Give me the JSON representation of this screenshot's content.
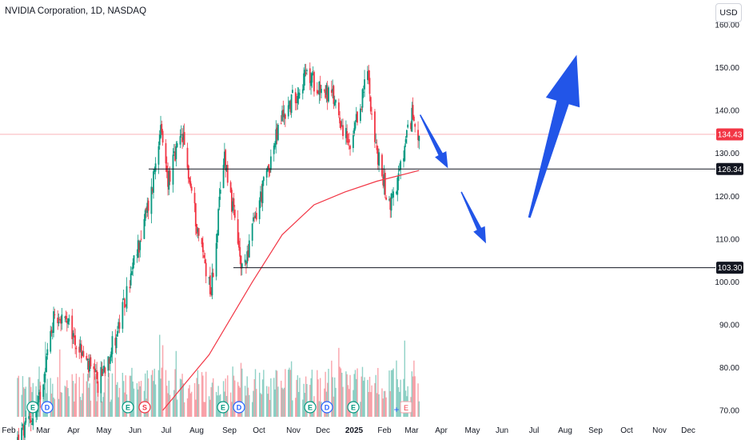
{
  "header": {
    "title": "NVIDIA Corporation, 1D, NASDAQ",
    "currency_button": "USD"
  },
  "price_tags": [
    {
      "label": "134.43",
      "value": 134.43,
      "bg": "#f23645",
      "fg": "#ffffff"
    },
    {
      "label": "126.34",
      "value": 126.34,
      "bg": "#131722",
      "fg": "#ffffff"
    },
    {
      "label": "103.30",
      "value": 103.3,
      "bg": "#131722",
      "fg": "#ffffff"
    }
  ],
  "events": {
    "markers": [
      "E",
      "D",
      "E",
      "S",
      "E",
      "D",
      "E",
      "D",
      "E"
    ]
  },
  "colors": {
    "up": "#089981",
    "down": "#f23645",
    "ma": "#f23645",
    "arrows": "#2255e8",
    "hline": "#131722"
  },
  "chart_data": {
    "type": "candlestick",
    "title": "NVIDIA Corporation, 1D, NASDAQ",
    "y_ticks": [
      "160.00",
      "150.00",
      "140.00",
      "130.00",
      "120.00",
      "110.00",
      "100.00",
      "90.00",
      "80.00",
      "70.00"
    ],
    "y_range": [
      70,
      160
    ],
    "x_ticks": [
      "Feb",
      "Mar",
      "Apr",
      "May",
      "Jun",
      "Jul",
      "Aug",
      "Sep",
      "Oct",
      "Nov",
      "Dec",
      "2025",
      "Feb",
      "Mar",
      "Apr",
      "May",
      "Jun",
      "Jul",
      "Aug",
      "Sep",
      "Oct",
      "Nov",
      "Dec"
    ],
    "last_price": 134.43,
    "horizontal_lines": [
      126.34,
      103.3
    ],
    "price_path": [
      [
        "2024-02-01",
        63
      ],
      [
        "2024-02-20",
        70
      ],
      [
        "2024-03-08",
        93
      ],
      [
        "2024-03-20",
        90
      ],
      [
        "2024-04-19",
        76
      ],
      [
        "2024-05-10",
        90
      ],
      [
        "2024-05-23",
        103
      ],
      [
        "2024-06-10",
        121
      ],
      [
        "2024-06-18",
        136
      ],
      [
        "2024-06-26",
        124
      ],
      [
        "2024-07-10",
        134
      ],
      [
        "2024-07-25",
        112
      ],
      [
        "2024-08-07",
        98
      ],
      [
        "2024-08-20",
        130
      ],
      [
        "2024-09-06",
        102
      ],
      [
        "2024-09-20",
        116
      ],
      [
        "2024-10-14",
        138
      ],
      [
        "2024-11-07",
        148
      ],
      [
        "2024-11-20",
        146
      ],
      [
        "2024-12-06",
        142
      ],
      [
        "2024-12-20",
        130
      ],
      [
        "2025-01-06",
        149
      ],
      [
        "2025-01-14",
        131
      ],
      [
        "2025-01-27",
        118
      ],
      [
        "2025-02-05",
        124
      ],
      [
        "2025-02-18",
        139
      ],
      [
        "2025-02-25",
        134.43
      ]
    ],
    "moving_average": [
      [
        "2024-06-21",
        70
      ],
      [
        "2024-08-05",
        83
      ],
      [
        "2024-09-16",
        100
      ],
      [
        "2024-10-15",
        111
      ],
      [
        "2024-11-15",
        118
      ],
      [
        "2024-12-15",
        121
      ],
      [
        "2025-01-15",
        123.5
      ],
      [
        "2025-02-25",
        126
      ]
    ],
    "volume": {
      "shown": true,
      "baseline": "bottom"
    },
    "projection_arrows": [
      {
        "from": [
          "2025-02-26",
          139
        ],
        "to": [
          "2025-03-25",
          126.5
        ]
      },
      {
        "from": [
          "2025-04-07",
          121
        ],
        "to": [
          "2025-05-01",
          109
        ]
      },
      {
        "from": [
          "2025-06-12",
          115
        ],
        "to": [
          "2025-07-28",
          153
        ]
      }
    ]
  }
}
